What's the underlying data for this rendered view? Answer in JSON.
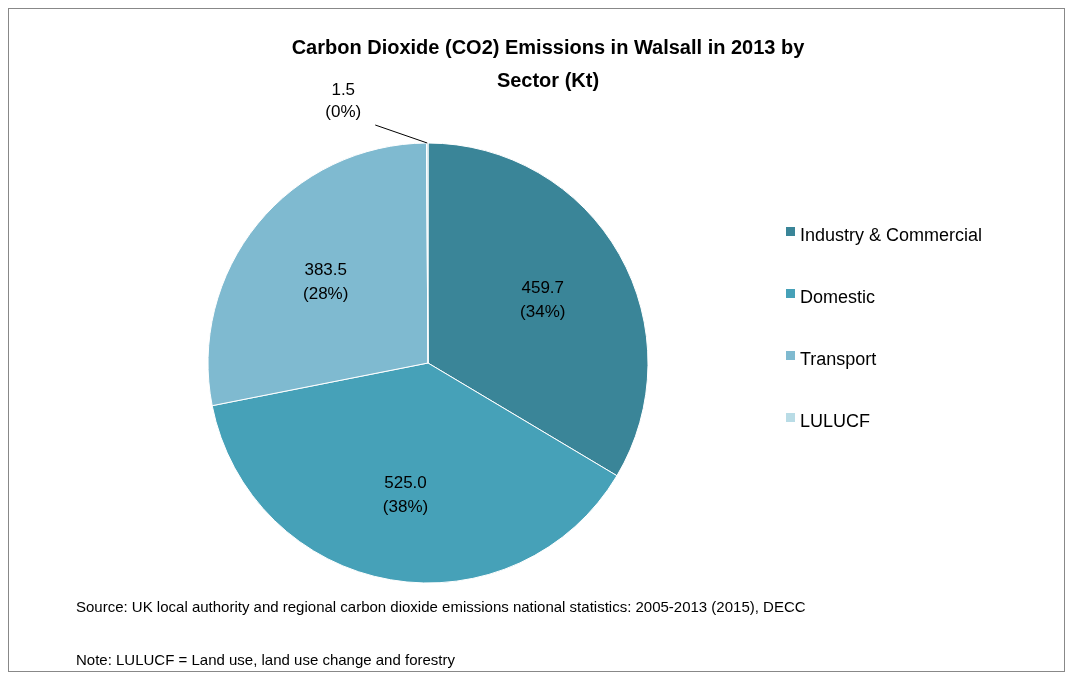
{
  "chart_data": {
    "type": "pie",
    "title": "Carbon Dioxide (CO2) Emissions in Walsall in 2013 by Sector (Kt)",
    "categories": [
      "Industry & Commercial",
      "Domestic",
      "Transport",
      "LULUCF"
    ],
    "values": [
      459.7,
      525.0,
      383.5,
      1.5
    ],
    "colors": [
      "#3a8598",
      "#46a1b8",
      "#7fbad0",
      "#b9dce6"
    ],
    "value_labels": [
      "459.7 (34%)",
      "525.0 (38%)",
      "383.5 (28%)",
      "1.5 (0%)"
    ],
    "legend": "right",
    "annotations": [
      "Source: UK local authority and regional carbon dioxide emissions national statistics: 2005-2013 (2015), DECC",
      "Note: LULUCF =  Land use, land use change and forestry"
    ]
  }
}
